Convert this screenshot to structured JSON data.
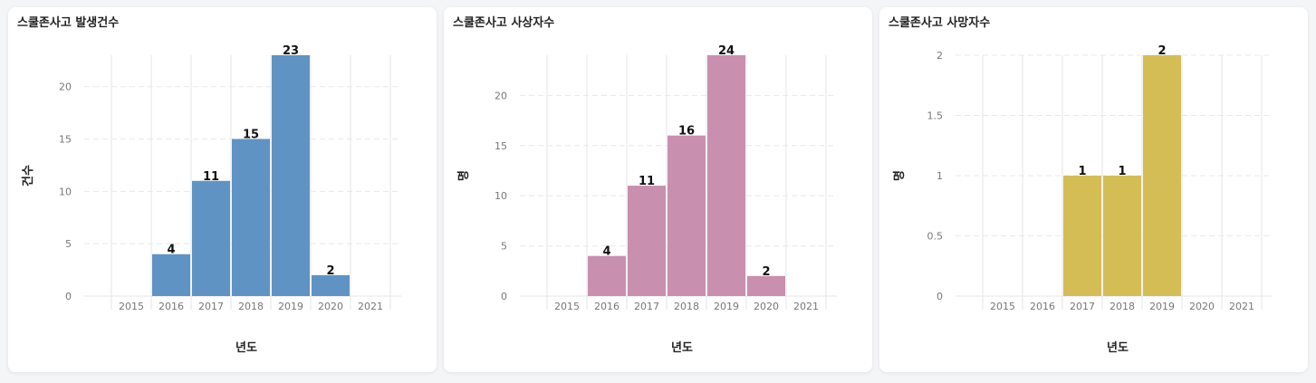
{
  "chart_data": [
    {
      "type": "bar",
      "title": "스쿨존사고 발생건수",
      "xlabel": "년도",
      "ylabel": "건수",
      "categories": [
        "2015",
        "2016",
        "2017",
        "2018",
        "2019",
        "2020",
        "2021"
      ],
      "values": [
        null,
        4,
        11,
        15,
        23,
        2,
        null
      ],
      "ylim": [
        0,
        23
      ],
      "yticks": [
        "0",
        "5",
        "10",
        "15",
        "20"
      ],
      "color": "#5f93c3",
      "grid": true
    },
    {
      "type": "bar",
      "title": "스쿨존사고 사상자수",
      "xlabel": "년도",
      "ylabel": "명",
      "categories": [
        "2015",
        "2016",
        "2017",
        "2018",
        "2019",
        "2020",
        "2021"
      ],
      "values": [
        null,
        4,
        11,
        16,
        24,
        2,
        null
      ],
      "ylim": [
        0,
        24
      ],
      "yticks": [
        "0",
        "5",
        "10",
        "15",
        "20"
      ],
      "color": "#c98fae",
      "grid": true
    },
    {
      "type": "bar",
      "title": "스쿨존사고 사망자수",
      "xlabel": "년도",
      "ylabel": "명",
      "categories": [
        "2015",
        "2016",
        "2017",
        "2018",
        "2019",
        "2020",
        "2021"
      ],
      "values": [
        null,
        null,
        1,
        1,
        2,
        null,
        null
      ],
      "ylim": [
        0,
        2
      ],
      "yticks": [
        "0",
        "0.5",
        "1",
        "1.5",
        "2"
      ],
      "color": "#d5bd55",
      "grid": true
    }
  ]
}
